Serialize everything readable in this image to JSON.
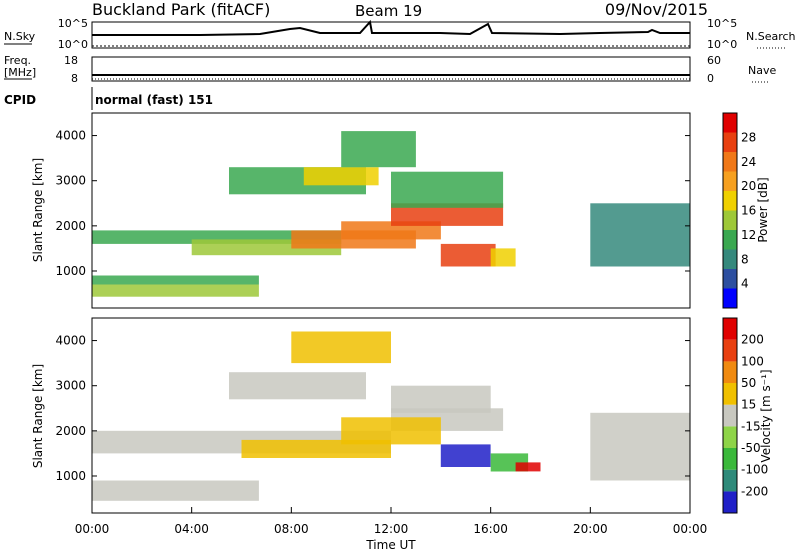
{
  "header": {
    "title": "Buckland Park (fitACF)",
    "beam": "Beam 19",
    "date": "09/Nov/2015"
  },
  "noise_panel": {
    "left_label": "N.Sky",
    "right_label": "N.Search",
    "left_ticks": [
      "10^5",
      "10^0"
    ],
    "right_ticks": [
      "10^5",
      "10^0"
    ]
  },
  "freq_panel": {
    "left_label_top": "Freq.",
    "left_label_bottom": "[MHz]",
    "right_label": "Nave",
    "left_ticks": [
      "18",
      "8"
    ],
    "right_ticks": [
      "60",
      "0"
    ]
  },
  "cpid": {
    "label": "CPID",
    "value": "normal (fast) 151"
  },
  "chart_data": [
    {
      "type": "heatmap",
      "name": "Power",
      "ylabel": "Slant Range [km]",
      "yticks": [
        "1000",
        "2000",
        "3000",
        "4000"
      ],
      "ylim": [
        180,
        4500
      ],
      "xlim": [
        0,
        24
      ],
      "colorbar_label": "Power [dB]",
      "colorbar_ticks": [
        "4",
        "8",
        "12",
        "16",
        "20",
        "24",
        "28"
      ],
      "colorbar_colors": [
        "#0000ff",
        "#2d4fa0",
        "#35897d",
        "#3aa850",
        "#9ec838",
        "#f0d000",
        "#f6a020",
        "#f07818",
        "#e84010",
        "#e00000"
      ],
      "regions": [
        {
          "x0": 0.0,
          "x1": 6.7,
          "y0": 700,
          "y1": 900,
          "level": 3
        },
        {
          "x0": 0.0,
          "x1": 6.7,
          "y0": 430,
          "y1": 700,
          "level": 4
        },
        {
          "x0": 0.0,
          "x1": 10.0,
          "y0": 1600,
          "y1": 1900,
          "level": 3
        },
        {
          "x0": 4.0,
          "x1": 10.0,
          "y0": 1350,
          "y1": 1700,
          "level": 4
        },
        {
          "x0": 8.0,
          "x1": 13.0,
          "y0": 1500,
          "y1": 1900,
          "level": 7
        },
        {
          "x0": 10.0,
          "x1": 14.0,
          "y0": 1700,
          "y1": 2100,
          "level": 7
        },
        {
          "x0": 12.0,
          "x1": 16.5,
          "y0": 2000,
          "y1": 2500,
          "level": 8
        },
        {
          "x0": 14.0,
          "x1": 16.2,
          "y0": 1100,
          "y1": 1600,
          "level": 8
        },
        {
          "x0": 16.0,
          "x1": 17.0,
          "y0": 1100,
          "y1": 1500,
          "level": 5
        },
        {
          "x0": 5.5,
          "x1": 11.0,
          "y0": 2700,
          "y1": 3300,
          "level": 3
        },
        {
          "x0": 8.5,
          "x1": 11.5,
          "y0": 2900,
          "y1": 3300,
          "level": 5
        },
        {
          "x0": 10.0,
          "x1": 13.0,
          "y0": 3300,
          "y1": 4100,
          "level": 3
        },
        {
          "x0": 12.0,
          "x1": 16.5,
          "y0": 2400,
          "y1": 3200,
          "level": 3
        },
        {
          "x0": 20.0,
          "x1": 24.0,
          "y0": 1100,
          "y1": 2500,
          "level": 2
        }
      ]
    },
    {
      "type": "heatmap",
      "name": "Velocity",
      "ylabel": "Slant Range [km]",
      "yticks": [
        "1000",
        "2000",
        "3000",
        "4000"
      ],
      "ylim": [
        180,
        4500
      ],
      "xlim": [
        0,
        24
      ],
      "xlabel": "Time UT",
      "xticks": [
        "00:00",
        "04:00",
        "08:00",
        "12:00",
        "16:00",
        "20:00",
        "00:00"
      ],
      "colorbar_label": "Velocity [m s⁻¹]",
      "colorbar_ticks": [
        "200",
        "100",
        "50",
        "15",
        "-15",
        "-50",
        "-100",
        "-200"
      ],
      "colorbar_colors": [
        "#2020c8",
        "#2e8a7a",
        "#3ab83a",
        "#8ed448",
        "#c8c8c0",
        "#f0c000",
        "#f08a10",
        "#e84010",
        "#e00000"
      ],
      "regions": [
        {
          "x0": 0.0,
          "x1": 6.7,
          "y0": 450,
          "y1": 900,
          "level": 4
        },
        {
          "x0": 0.0,
          "x1": 12.0,
          "y0": 1500,
          "y1": 2000,
          "level": 4
        },
        {
          "x0": 6.0,
          "x1": 12.0,
          "y0": 1400,
          "y1": 1800,
          "level": 5
        },
        {
          "x0": 12.0,
          "x1": 16.5,
          "y0": 2000,
          "y1": 2500,
          "level": 4
        },
        {
          "x0": 10.0,
          "x1": 14.0,
          "y0": 1700,
          "y1": 2300,
          "level": 5
        },
        {
          "x0": 14.0,
          "x1": 16.0,
          "y0": 1200,
          "y1": 1700,
          "level": 0
        },
        {
          "x0": 16.0,
          "x1": 17.5,
          "y0": 1100,
          "y1": 1500,
          "level": 2
        },
        {
          "x0": 17.0,
          "x1": 18.0,
          "y0": 1100,
          "y1": 1300,
          "level": 8
        },
        {
          "x0": 5.5,
          "x1": 11.0,
          "y0": 2700,
          "y1": 3300,
          "level": 4
        },
        {
          "x0": 8.0,
          "x1": 12.0,
          "y0": 3500,
          "y1": 4200,
          "level": 5
        },
        {
          "x0": 12.0,
          "x1": 16.0,
          "y0": 2400,
          "y1": 3000,
          "level": 4
        },
        {
          "x0": 20.0,
          "x1": 24.0,
          "y0": 900,
          "y1": 2400,
          "level": 4
        }
      ]
    }
  ]
}
